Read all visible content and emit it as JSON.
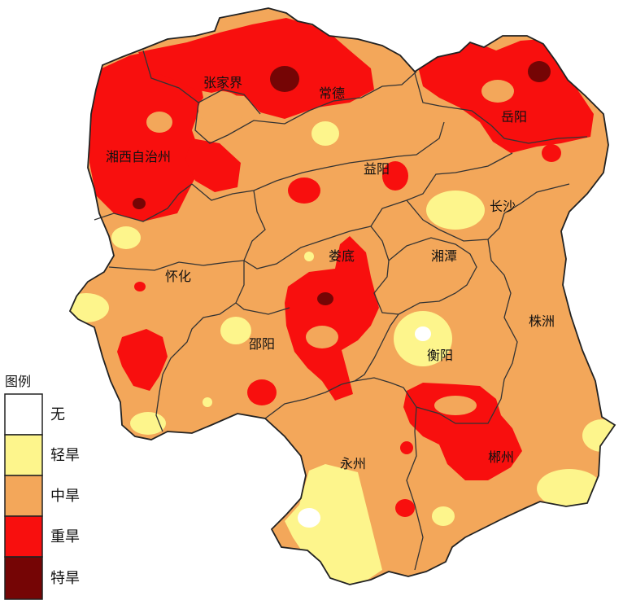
{
  "map": {
    "cities": [
      {
        "id": "zhangjiajie",
        "name": "张家界"
      },
      {
        "id": "changde",
        "name": "常德"
      },
      {
        "id": "yueyang",
        "name": "岳阳"
      },
      {
        "id": "xiangxi",
        "name": "湘西自治州"
      },
      {
        "id": "yiyang",
        "name": "益阳"
      },
      {
        "id": "changsha",
        "name": "长沙"
      },
      {
        "id": "huaihua",
        "name": "怀化"
      },
      {
        "id": "loudi",
        "name": "娄底"
      },
      {
        "id": "xiangtan",
        "name": "湘潭"
      },
      {
        "id": "zhuzhou",
        "name": "株洲"
      },
      {
        "id": "shaoyang",
        "name": "邵阳"
      },
      {
        "id": "hengyang",
        "name": "衡阳"
      },
      {
        "id": "yongzhou",
        "name": "永州"
      },
      {
        "id": "chenzhou",
        "name": "郴州"
      }
    ]
  },
  "legend": {
    "title": "图例",
    "items": [
      {
        "label": "无",
        "color": "#ffffff"
      },
      {
        "label": "轻旱",
        "color": "#fdf58c"
      },
      {
        "label": "中旱",
        "color": "#f3a75a"
      },
      {
        "label": "重旱",
        "color": "#f80f0e"
      },
      {
        "label": "特旱",
        "color": "#750505"
      }
    ]
  }
}
